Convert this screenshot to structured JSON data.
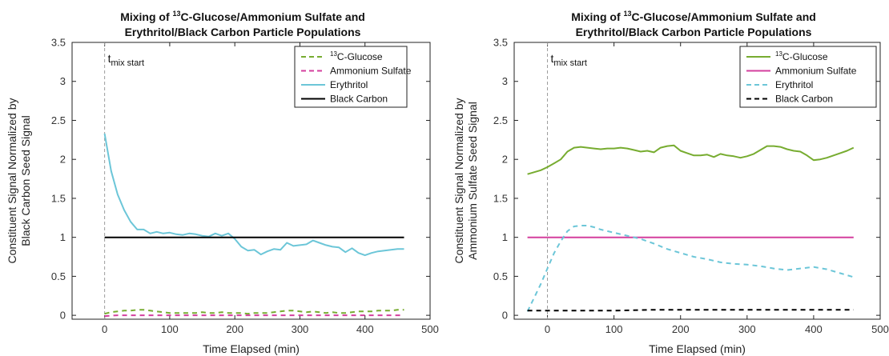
{
  "chart_data": [
    {
      "type": "line",
      "title_line1_pre": "Mixing of ",
      "title_line1_sup": "13",
      "title_line1_post": "C-Glucose/Ammonium Sulfate and",
      "title_line2": "Erythritol/Black Carbon Particle Populations",
      "xlabel": "Time Elapsed (min)",
      "ylabel_line1": "Constituent Signal Normalized by",
      "ylabel_line2": "Black Carbon Seed Signal",
      "xlim": [
        -50,
        500
      ],
      "ylim": [
        -0.05,
        3.5
      ],
      "xticks": [
        0,
        100,
        200,
        300,
        400,
        500
      ],
      "yticks": [
        0,
        0.5,
        1,
        1.5,
        2,
        2.5,
        3,
        3.5
      ],
      "ytick_labels": [
        "0",
        "0.5",
        "1",
        "1.5",
        "2",
        "2.5",
        "3",
        "3.5"
      ],
      "vline_x": 0,
      "annotation_main": "t",
      "annotation_sub": "mix start",
      "legend_position": "top-right",
      "series": [
        {
          "name_sup": "13",
          "name": "C-Glucose",
          "color": "#77ac30",
          "dash": "6,5",
          "x": [
            0,
            10,
            20,
            30,
            40,
            50,
            60,
            70,
            80,
            90,
            100,
            110,
            120,
            130,
            140,
            150,
            160,
            170,
            180,
            190,
            200,
            210,
            220,
            230,
            240,
            250,
            260,
            270,
            280,
            290,
            300,
            310,
            320,
            330,
            340,
            350,
            360,
            370,
            380,
            390,
            400,
            410,
            420,
            430,
            440,
            450,
            460
          ],
          "y": [
            0.02,
            0.04,
            0.05,
            0.06,
            0.06,
            0.07,
            0.07,
            0.06,
            0.05,
            0.04,
            0.03,
            0.03,
            0.03,
            0.03,
            0.03,
            0.04,
            0.03,
            0.03,
            0.04,
            0.03,
            0.03,
            0.03,
            0.02,
            0.03,
            0.03,
            0.03,
            0.04,
            0.05,
            0.06,
            0.06,
            0.05,
            0.04,
            0.05,
            0.04,
            0.03,
            0.04,
            0.03,
            0.03,
            0.04,
            0.05,
            0.05,
            0.05,
            0.06,
            0.06,
            0.06,
            0.07,
            0.07
          ]
        },
        {
          "name_sup": "",
          "name": "Ammonium Sulfate",
          "color": "#d43f9e",
          "dash": "6,5",
          "x": [
            0,
            20,
            40,
            60,
            80,
            100,
            120,
            140,
            160,
            180,
            200,
            220,
            240,
            260,
            280,
            300,
            320,
            340,
            360,
            380,
            400,
            420,
            440,
            460
          ],
          "y": [
            -0.01,
            0.0,
            0.0,
            0.0,
            0.0,
            0.0,
            0.0,
            0.0,
            0.0,
            0.0,
            0.0,
            0.0,
            0.0,
            0.0,
            0.0,
            0.0,
            0.0,
            0.0,
            0.0,
            0.0,
            0.0,
            0.0,
            0.0,
            0.0
          ]
        },
        {
          "name_sup": "",
          "name": "Erythritol",
          "color": "#6cc6d8",
          "dash": "",
          "x": [
            0,
            10,
            20,
            30,
            40,
            50,
            60,
            70,
            80,
            90,
            100,
            110,
            120,
            130,
            140,
            150,
            160,
            170,
            180,
            190,
            200,
            210,
            220,
            230,
            240,
            250,
            260,
            270,
            280,
            290,
            300,
            310,
            320,
            330,
            340,
            350,
            360,
            370,
            380,
            390,
            400,
            410,
            420,
            430,
            440,
            450,
            460
          ],
          "y": [
            2.33,
            1.85,
            1.55,
            1.35,
            1.2,
            1.1,
            1.1,
            1.05,
            1.07,
            1.05,
            1.06,
            1.04,
            1.03,
            1.05,
            1.04,
            1.02,
            1.01,
            1.05,
            1.02,
            1.05,
            0.98,
            0.88,
            0.83,
            0.84,
            0.78,
            0.82,
            0.85,
            0.84,
            0.93,
            0.89,
            0.9,
            0.91,
            0.96,
            0.93,
            0.9,
            0.88,
            0.87,
            0.81,
            0.86,
            0.8,
            0.77,
            0.8,
            0.82,
            0.83,
            0.84,
            0.85,
            0.85
          ]
        },
        {
          "name_sup": "",
          "name": "Black Carbon",
          "color": "#000000",
          "dash": "",
          "x": [
            0,
            460
          ],
          "y": [
            1,
            1
          ]
        }
      ]
    },
    {
      "type": "line",
      "title_line1_pre": "Mixing of ",
      "title_line1_sup": "13",
      "title_line1_post": "C-Glucose/Ammonium Sulfate and",
      "title_line2": "Erythritol/Black Carbon Particle Populations",
      "xlabel": "Time Elapsed (min)",
      "ylabel_line1": "Constituent Signal Normalized by",
      "ylabel_line2": "Ammonium Sulfate Seed Signal",
      "xlim": [
        -50,
        500
      ],
      "ylim": [
        -0.05,
        3.5
      ],
      "xticks": [
        0,
        100,
        200,
        300,
        400,
        500
      ],
      "yticks": [
        0,
        0.5,
        1,
        1.5,
        2,
        2.5,
        3,
        3.5
      ],
      "ytick_labels": [
        "0",
        "0.5",
        "1",
        "1.5",
        "2",
        "2.5",
        "3",
        "3.5"
      ],
      "vline_x": 0,
      "annotation_main": "t",
      "annotation_sub": "mix start",
      "legend_position": "top-right",
      "series": [
        {
          "name_sup": "13",
          "name": "C-Glucose",
          "color": "#77ac30",
          "dash": "",
          "x": [
            -30,
            -10,
            0,
            10,
            20,
            30,
            40,
            50,
            60,
            70,
            80,
            90,
            100,
            110,
            120,
            130,
            140,
            150,
            160,
            170,
            180,
            190,
            200,
            210,
            220,
            230,
            240,
            250,
            260,
            270,
            280,
            290,
            300,
            310,
            320,
            330,
            340,
            350,
            360,
            370,
            380,
            390,
            400,
            410,
            420,
            430,
            440,
            450,
            460
          ],
          "y": [
            1.81,
            1.86,
            1.9,
            1.95,
            2.0,
            2.1,
            2.15,
            2.16,
            2.15,
            2.14,
            2.13,
            2.14,
            2.14,
            2.15,
            2.14,
            2.12,
            2.1,
            2.11,
            2.09,
            2.15,
            2.17,
            2.18,
            2.11,
            2.08,
            2.05,
            2.05,
            2.06,
            2.03,
            2.07,
            2.05,
            2.04,
            2.02,
            2.04,
            2.07,
            2.12,
            2.17,
            2.17,
            2.16,
            2.13,
            2.11,
            2.1,
            2.05,
            1.99,
            2.0,
            2.02,
            2.05,
            2.08,
            2.11,
            2.15
          ]
        },
        {
          "name_sup": "",
          "name": "Ammonium Sulfate",
          "color": "#d43f9e",
          "dash": "",
          "x": [
            -30,
            460
          ],
          "y": [
            1,
            1
          ]
        },
        {
          "name_sup": "",
          "name": "Erythritol",
          "color": "#6cc6d8",
          "dash": "6,5",
          "x": [
            -30,
            -10,
            0,
            10,
            20,
            30,
            40,
            50,
            60,
            70,
            80,
            90,
            100,
            120,
            140,
            160,
            180,
            200,
            220,
            240,
            260,
            280,
            300,
            320,
            340,
            360,
            380,
            400,
            420,
            440,
            460
          ],
          "y": [
            0.05,
            0.4,
            0.6,
            0.8,
            0.95,
            1.08,
            1.14,
            1.15,
            1.15,
            1.13,
            1.1,
            1.08,
            1.06,
            1.02,
            0.98,
            0.92,
            0.85,
            0.8,
            0.75,
            0.72,
            0.68,
            0.66,
            0.65,
            0.63,
            0.6,
            0.58,
            0.6,
            0.62,
            0.59,
            0.54,
            0.49
          ]
        },
        {
          "name_sup": "",
          "name": "Black Carbon",
          "color": "#000000",
          "dash": "6,5",
          "x": [
            -30,
            0,
            50,
            100,
            150,
            200,
            250,
            300,
            350,
            400,
            460
          ],
          "y": [
            0.06,
            0.06,
            0.06,
            0.06,
            0.07,
            0.07,
            0.07,
            0.07,
            0.07,
            0.07,
            0.07
          ]
        }
      ]
    }
  ]
}
